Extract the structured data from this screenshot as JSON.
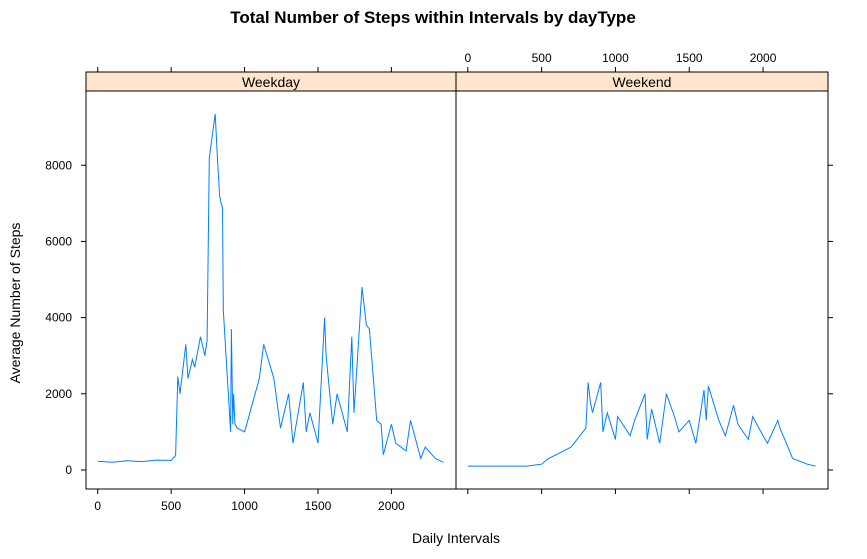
{
  "chart_data": {
    "type": "line",
    "title": "Total Number of Steps within Intervals by dayType",
    "xlabel": "Daily Intervals",
    "ylabel": "Average Number of Steps",
    "xlim": [
      -80,
      2440
    ],
    "ylim": [
      -500,
      9950
    ],
    "x_ticks": [
      0,
      500,
      1000,
      1500,
      2000
    ],
    "x_tick_labels": [
      "0",
      "500",
      "1000",
      "1500",
      "2000"
    ],
    "y_ticks": [
      0,
      2000,
      4000,
      6000,
      8000
    ],
    "y_tick_labels": [
      "0",
      "2000",
      "4000",
      "6000",
      "8000"
    ],
    "strip_color": "#ffe5cc",
    "line_color": "#0080ff",
    "panels": [
      {
        "name": "Weekday",
        "x": [
          0,
          100,
          200,
          300,
          400,
          500,
          530,
          545,
          560,
          600,
          615,
          645,
          660,
          700,
          730,
          745,
          760,
          800,
          815,
          830,
          840,
          850,
          855,
          905,
          910,
          920,
          925,
          935,
          950,
          1000,
          1100,
          1130,
          1200,
          1245,
          1300,
          1330,
          1400,
          1420,
          1445,
          1500,
          1545,
          1555,
          1600,
          1630,
          1700,
          1730,
          1745,
          1800,
          1830,
          1850,
          1900,
          1930,
          1945,
          2000,
          2030,
          2100,
          2130,
          2200,
          2230,
          2300,
          2355
        ],
        "y": [
          230,
          200,
          240,
          220,
          260,
          250,
          380,
          2450,
          2000,
          3300,
          2400,
          2900,
          2700,
          3500,
          3000,
          3400,
          8200,
          9350,
          8200,
          7200,
          7000,
          6900,
          4200,
          1000,
          3700,
          1200,
          2000,
          1200,
          1100,
          1000,
          2400,
          3300,
          2400,
          1100,
          2000,
          700,
          2300,
          1000,
          1500,
          700,
          4000,
          3000,
          1200,
          2000,
          1000,
          3500,
          1500,
          4800,
          3800,
          3700,
          1300,
          1200,
          400,
          1200,
          700,
          500,
          1300,
          300,
          600,
          300,
          200
        ]
      },
      {
        "name": "Weekend",
        "x": [
          0,
          100,
          200,
          300,
          400,
          500,
          545,
          600,
          700,
          800,
          815,
          830,
          845,
          900,
          915,
          945,
          1000,
          1015,
          1100,
          1130,
          1200,
          1215,
          1245,
          1300,
          1345,
          1400,
          1430,
          1500,
          1545,
          1600,
          1615,
          1630,
          1700,
          1745,
          1800,
          1830,
          1900,
          1930,
          2000,
          2030,
          2100,
          2115,
          2200,
          2300,
          2355
        ],
        "y": [
          100,
          100,
          100,
          100,
          100,
          150,
          300,
          400,
          600,
          1100,
          2300,
          1800,
          1500,
          2300,
          1000,
          1500,
          800,
          1400,
          900,
          1300,
          2000,
          800,
          1600,
          700,
          2000,
          1400,
          1000,
          1300,
          700,
          2100,
          1300,
          2200,
          1300,
          900,
          1700,
          1200,
          800,
          1400,
          900,
          700,
          1300,
          1100,
          300,
          150,
          100
        ]
      }
    ]
  }
}
